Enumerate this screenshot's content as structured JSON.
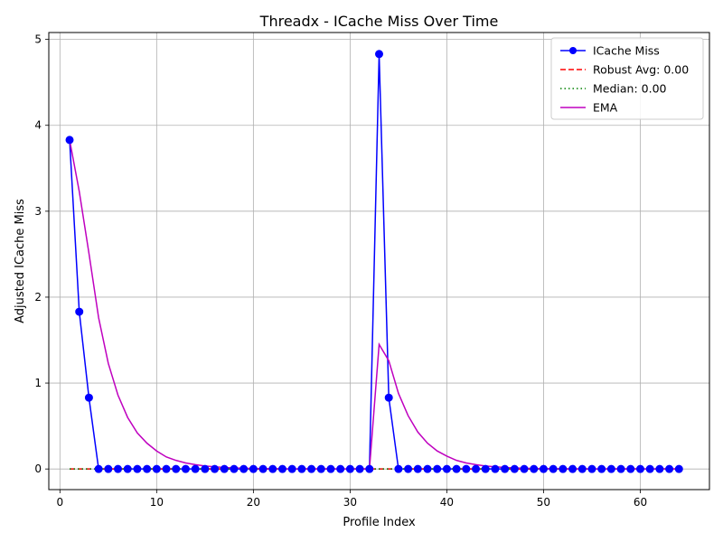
{
  "chart_data": {
    "type": "line",
    "title": "Threadx - ICache Miss Over Time",
    "xlabel": "Profile Index",
    "ylabel": "Adjusted ICache Miss",
    "xlim": [
      -1.15,
      67.15
    ],
    "ylim": [
      -0.24,
      5.08
    ],
    "xticks": [
      0,
      10,
      20,
      30,
      40,
      50,
      60
    ],
    "yticks": [
      0,
      1,
      2,
      3,
      4,
      5
    ],
    "grid": true,
    "legend_position": "top-right",
    "x": [
      1,
      2,
      3,
      4,
      5,
      6,
      7,
      8,
      9,
      10,
      11,
      12,
      13,
      14,
      15,
      16,
      17,
      18,
      19,
      20,
      21,
      22,
      23,
      24,
      25,
      26,
      27,
      28,
      29,
      30,
      31,
      32,
      33,
      34,
      35,
      36,
      37,
      38,
      39,
      40,
      41,
      42,
      43,
      44,
      45,
      46,
      47,
      48,
      49,
      50,
      51,
      52,
      53,
      54,
      55,
      56,
      57,
      58,
      59,
      60,
      61,
      62,
      63,
      64
    ],
    "series": [
      {
        "name": "ICache Miss",
        "color": "#0000ff",
        "style": "solid-with-markers",
        "values": [
          3.83,
          1.83,
          0.83,
          0,
          0,
          0,
          0,
          0,
          0,
          0,
          0,
          0,
          0,
          0,
          0,
          0,
          0,
          0,
          0,
          0,
          0,
          0,
          0,
          0,
          0,
          0,
          0,
          0,
          0,
          0,
          0,
          0,
          4.83,
          0.83,
          0,
          0,
          0,
          0,
          0,
          0,
          0,
          0,
          0,
          0,
          0,
          0,
          0,
          0,
          0,
          0,
          0,
          0,
          0,
          0,
          0,
          0,
          0,
          0,
          0,
          0,
          0,
          0,
          0,
          0
        ]
      },
      {
        "name": "Robust Avg: 0.00",
        "color": "#ff0000",
        "style": "dashed",
        "values": [
          0,
          0,
          0,
          0,
          0,
          0,
          0,
          0,
          0,
          0,
          0,
          0,
          0,
          0,
          0,
          0,
          0,
          0,
          0,
          0,
          0,
          0,
          0,
          0,
          0,
          0,
          0,
          0,
          0,
          0,
          0,
          0,
          0,
          0,
          0,
          0,
          0,
          0,
          0,
          0,
          0,
          0,
          0,
          0,
          0,
          0,
          0,
          0,
          0,
          0,
          0,
          0,
          0,
          0,
          0,
          0,
          0,
          0,
          0,
          0,
          0,
          0,
          0,
          0
        ]
      },
      {
        "name": "Median: 0.00",
        "color": "#008000",
        "style": "dotted",
        "values": [
          0,
          0,
          0,
          0,
          0,
          0,
          0,
          0,
          0,
          0,
          0,
          0,
          0,
          0,
          0,
          0,
          0,
          0,
          0,
          0,
          0,
          0,
          0,
          0,
          0,
          0,
          0,
          0,
          0,
          0,
          0,
          0,
          0,
          0,
          0,
          0,
          0,
          0,
          0,
          0,
          0,
          0,
          0,
          0,
          0,
          0,
          0,
          0,
          0,
          0,
          0,
          0,
          0,
          0,
          0,
          0,
          0,
          0,
          0,
          0,
          0,
          0,
          0,
          0
        ]
      },
      {
        "name": "EMA",
        "color": "#bf00bf",
        "style": "solid",
        "values": [
          3.83,
          3.23,
          2.51,
          1.76,
          1.23,
          0.86,
          0.6,
          0.42,
          0.3,
          0.21,
          0.14,
          0.1,
          0.07,
          0.05,
          0.035,
          0.025,
          0.017,
          0.012,
          0.008,
          0.006,
          0.004,
          0.003,
          0.002,
          0.001,
          0.001,
          0.001,
          0,
          0,
          0,
          0,
          0,
          0,
          1.45,
          1.26,
          0.88,
          0.62,
          0.43,
          0.3,
          0.21,
          0.15,
          0.1,
          0.07,
          0.05,
          0.035,
          0.025,
          0.017,
          0.012,
          0.008,
          0.006,
          0.004,
          0.003,
          0.002,
          0.001,
          0.001,
          0,
          0,
          0,
          0,
          0,
          0,
          0,
          0,
          0,
          0
        ]
      }
    ]
  }
}
